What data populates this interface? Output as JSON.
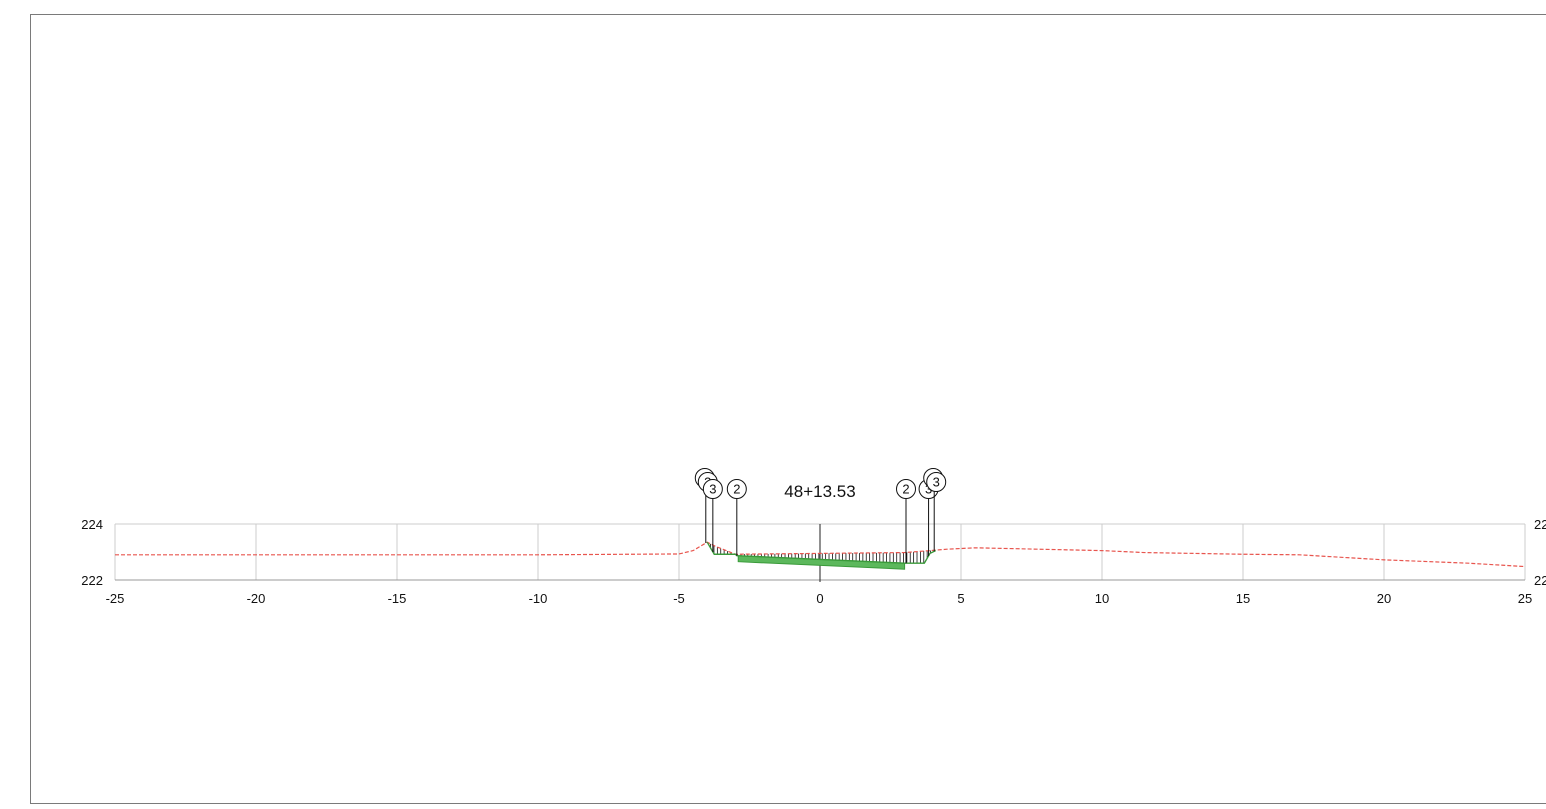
{
  "chart_data": {
    "type": "line",
    "title": "48+13.53",
    "xlabel": "",
    "ylabel": "",
    "xlim": [
      -25,
      25
    ],
    "ylim": [
      222,
      224
    ],
    "x_ticks": [
      "-25",
      "-20",
      "-15",
      "-10",
      "-5",
      "0",
      "5",
      "10",
      "15",
      "20",
      "25"
    ],
    "y_ticks": [
      "222",
      "224"
    ],
    "y_ticks_right": [
      "22",
      "22"
    ],
    "grid": true,
    "colors": {
      "ground": "#e8554e",
      "design": "#3a9a3a",
      "pavement": "#5cb85c",
      "grid": "#cccccc",
      "axis": "#222222"
    },
    "series": [
      {
        "key": "existing_ground",
        "style": "dashed",
        "points": [
          [
            -25,
            222.9
          ],
          [
            -10,
            222.9
          ],
          [
            -5,
            222.93
          ],
          [
            -4.5,
            223.05
          ],
          [
            -4.0,
            223.35
          ],
          [
            -3.7,
            223.2
          ],
          [
            -3.0,
            222.92
          ],
          [
            0,
            222.95
          ],
          [
            3.0,
            222.98
          ],
          [
            3.9,
            223.05
          ],
          [
            4.5,
            223.1
          ],
          [
            5.5,
            223.15
          ],
          [
            10,
            223.05
          ],
          [
            11.5,
            222.98
          ],
          [
            15,
            222.92
          ],
          [
            17,
            222.9
          ],
          [
            20,
            222.72
          ],
          [
            23,
            222.6
          ],
          [
            25,
            222.48
          ]
        ]
      },
      {
        "key": "design_section",
        "style": "solid",
        "points": [
          [
            -4.0,
            223.35
          ],
          [
            -3.75,
            222.92
          ],
          [
            -3.0,
            222.92
          ],
          [
            -2.95,
            222.87
          ],
          [
            3.0,
            222.6
          ],
          [
            3.7,
            222.6
          ],
          [
            3.9,
            222.95
          ],
          [
            4.1,
            223.05
          ]
        ]
      }
    ],
    "pavement": {
      "x_start": -2.9,
      "x_end": 3.0
    },
    "center_line": {
      "x": 0
    },
    "markers": [
      {
        "x": -4.05,
        "labels": [
          "3",
          "3"
        ],
        "group": "left-outer"
      },
      {
        "x": -3.8,
        "labels": [
          "3"
        ],
        "group": "left-inner"
      },
      {
        "x": -2.95,
        "labels": [
          "2"
        ],
        "group": "left-edge"
      },
      {
        "x": 3.05,
        "labels": [
          "2"
        ],
        "group": "right-edge"
      },
      {
        "x": 3.85,
        "labels": [
          "3"
        ],
        "group": "right-inner"
      },
      {
        "x": 4.05,
        "labels": [
          "3",
          "3"
        ],
        "group": "right-outer"
      }
    ]
  }
}
